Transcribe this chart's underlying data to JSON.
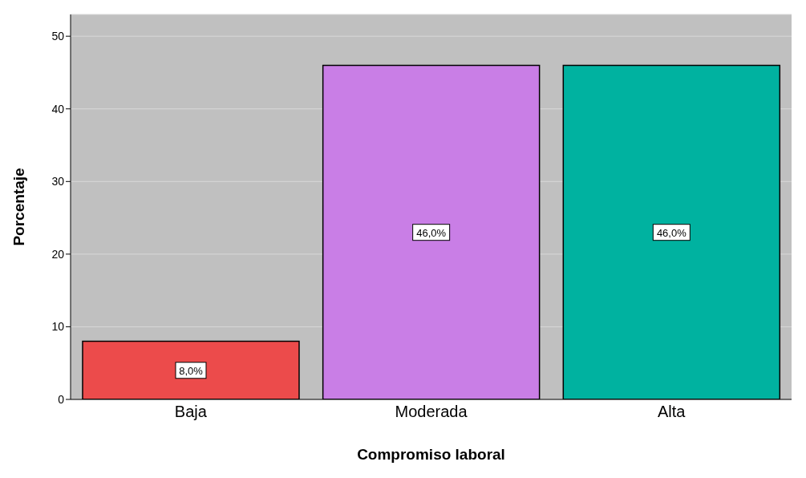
{
  "chart_data": {
    "type": "bar",
    "xlabel": "Compromiso laboral",
    "ylabel": "Porcentaje",
    "categories": [
      "Baja",
      "Moderada",
      "Alta"
    ],
    "values": [
      8.0,
      46.0,
      46.0
    ],
    "colors": [
      "#ec4b4b",
      "#c97ee6",
      "#00b2a0"
    ],
    "value_labels": [
      "8,0%",
      "46,0%",
      "46,0%"
    ],
    "ylim": [
      0,
      53
    ],
    "yticks": [
      0,
      10,
      20,
      30,
      40,
      50
    ],
    "grid": "y"
  }
}
